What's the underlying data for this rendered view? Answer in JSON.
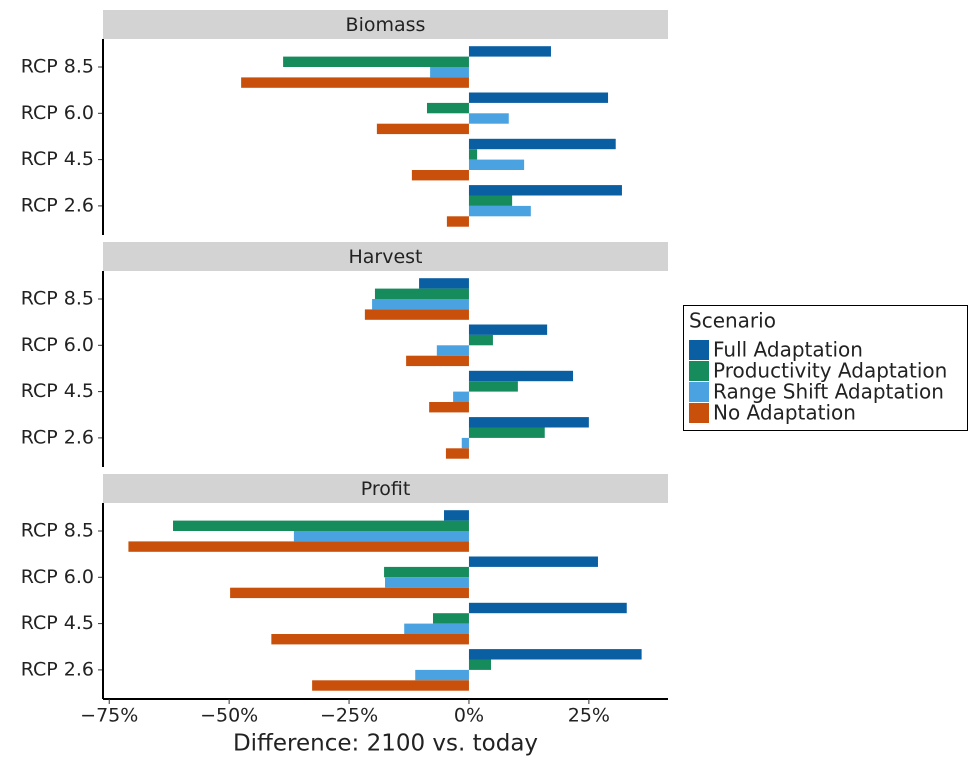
{
  "chart_data": {
    "type": "bar",
    "orientation": "horizontal",
    "xlabel": "Difference: 2100 vs. today",
    "xlim": [
      -76.3,
      41.5
    ],
    "xticks": [
      {
        "value": -75,
        "label": "−75%"
      },
      {
        "value": -50,
        "label": "−50%"
      },
      {
        "value": -25,
        "label": "−25%"
      },
      {
        "value": 0,
        "label": "0%"
      },
      {
        "value": 25,
        "label": "25%"
      }
    ],
    "legend_title": "Scenario",
    "legend": "right",
    "categories": [
      "RCP 8.5",
      "RCP 6.0",
      "RCP 4.5",
      "RCP 2.6"
    ],
    "series": [
      {
        "name": "Full Adaptation",
        "color": "#0a5fa3"
      },
      {
        "name": "Productivity Adaptation",
        "color": "#168b5c"
      },
      {
        "name": "Range Shift Adaptation",
        "color": "#4aa3e0"
      },
      {
        "name": "No Adaptation",
        "color": "#c8500a"
      }
    ],
    "panels": [
      {
        "title": "Biomass",
        "series": [
          {
            "values": [
              17.1,
              29,
              30.6,
              31.9
            ]
          },
          {
            "values": [
              -38.75,
              -8.75,
              1.7,
              9
            ]
          },
          {
            "values": [
              -8.1,
              8.3,
              11.5,
              12.9
            ]
          },
          {
            "values": [
              -47.5,
              -19.2,
              -11.9,
              -4.6
            ]
          }
        ]
      },
      {
        "title": "Harvest",
        "series": [
          {
            "values": [
              -10.4,
              16.3,
              21.7,
              25
            ]
          },
          {
            "values": [
              -19.6,
              5,
              10.2,
              15.8
            ]
          },
          {
            "values": [
              -20.2,
              -6.7,
              -3.3,
              -1.5
            ]
          },
          {
            "values": [
              -21.7,
              -13.1,
              -8.3,
              -4.8
            ]
          }
        ]
      },
      {
        "title": "Profit",
        "series": [
          {
            "values": [
              -5.2,
              26.9,
              32.9,
              36
            ]
          },
          {
            "values": [
              -61.7,
              -17.7,
              -7.5,
              4.6
            ]
          },
          {
            "values": [
              -36.5,
              -17.5,
              -13.5,
              -11.2
            ]
          },
          {
            "values": [
              -71,
              -49.8,
              -41.2,
              -32.7
            ]
          }
        ]
      }
    ]
  }
}
